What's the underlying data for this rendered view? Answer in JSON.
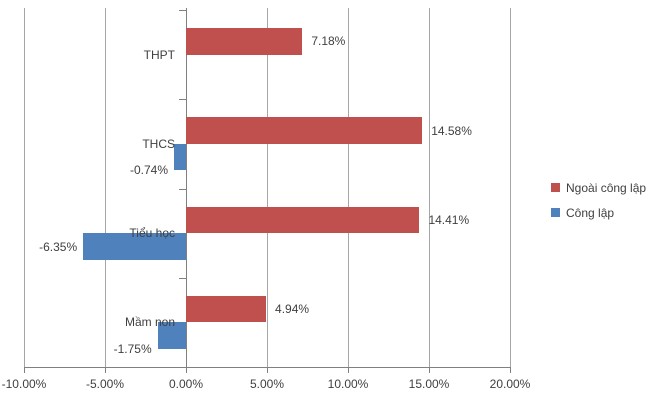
{
  "colors": {
    "ngoai_cong_lap": "#C0504D",
    "cong_lap": "#4F81BD",
    "gridline": "#A6A6A6",
    "axis": "#808080",
    "text": "#3F3F3F",
    "background": "#FFFFFF"
  },
  "chart_data": {
    "type": "bar",
    "orientation": "horizontal",
    "title": "",
    "categories": [
      "THPT",
      "THCS",
      "Tiểu học",
      "Mầm non"
    ],
    "series": [
      {
        "name": "Ngoài công lập",
        "color": "#C0504D",
        "values": [
          7.18,
          14.58,
          14.41,
          4.94
        ],
        "data_labels": [
          "7.18%",
          "14.58%",
          "14.41%",
          "4.94%"
        ]
      },
      {
        "name": "Công lập",
        "color": "#4F81BD",
        "values": [
          null,
          -0.74,
          -6.35,
          -1.75
        ],
        "data_labels": [
          null,
          "-0.74%",
          "-6.35%",
          "-1.75%"
        ]
      }
    ],
    "x_axis": {
      "min": -10,
      "max": 20,
      "tick_step": 5,
      "tick_values": [
        -10,
        -5,
        0,
        5,
        10,
        15,
        20
      ],
      "tick_labels": [
        "-10.00%",
        "-5.00%",
        "0.00%",
        "5.00%",
        "10.00%",
        "15.00%",
        "20.00%"
      ]
    },
    "grid": true,
    "legend": {
      "position": "right",
      "entries": [
        "Ngoài công lập",
        "Công lập"
      ]
    }
  }
}
